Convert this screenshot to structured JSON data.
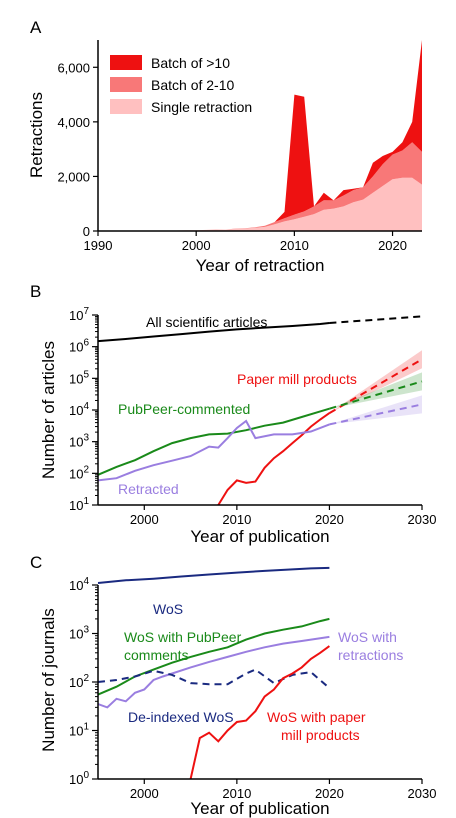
{
  "chart_data": [
    {
      "panel_label": "A",
      "type": "area",
      "stacked": true,
      "xlabel": "Year of retraction",
      "ylabel": "Retractions",
      "xlim": [
        1990,
        2023
      ],
      "ylim": [
        0,
        7000
      ],
      "xticks": [
        1990,
        2000,
        2010,
        2020
      ],
      "yticks": [
        0,
        2000,
        4000,
        6000
      ],
      "ytick_labels": [
        "0",
        "2,000",
        "4,000",
        "6,000"
      ],
      "legend_position": "top-left",
      "x": [
        1990,
        1991,
        1992,
        1993,
        1994,
        1995,
        1996,
        1997,
        1998,
        1999,
        2000,
        2001,
        2002,
        2003,
        2004,
        2005,
        2006,
        2007,
        2008,
        2009,
        2010,
        2011,
        2012,
        2013,
        2014,
        2015,
        2016,
        2017,
        2018,
        2019,
        2020,
        2021,
        2022,
        2023
      ],
      "series": [
        {
          "name": "Single retraction",
          "color": "#ffc0c0",
          "values": [
            10,
            10,
            10,
            10,
            10,
            10,
            15,
            20,
            20,
            25,
            30,
            40,
            60,
            50,
            80,
            90,
            120,
            150,
            250,
            350,
            430,
            520,
            620,
            780,
            820,
            900,
            1050,
            1150,
            1400,
            1650,
            1900,
            1950,
            1950,
            1700
          ]
        },
        {
          "name": "Batch of 2-10",
          "color": "#f87878",
          "values": [
            0,
            0,
            0,
            0,
            0,
            0,
            0,
            0,
            0,
            0,
            0,
            0,
            0,
            0,
            10,
            10,
            20,
            40,
            80,
            120,
            170,
            200,
            280,
            350,
            300,
            400,
            450,
            450,
            600,
            800,
            900,
            1000,
            1300,
            1200
          ]
        },
        {
          "name": "Batch of >10",
          "color": "#ee1111",
          "values": [
            0,
            0,
            0,
            0,
            0,
            0,
            0,
            0,
            0,
            0,
            0,
            0,
            0,
            0,
            0,
            0,
            0,
            0,
            0,
            230,
            4400,
            4200,
            0,
            270,
            0,
            200,
            50,
            0,
            500,
            300,
            100,
            300,
            750,
            4100
          ]
        }
      ]
    },
    {
      "panel_label": "B",
      "type": "line",
      "yscale": "log",
      "xlabel": "Year of publication",
      "ylabel": "Number of articles",
      "xlim": [
        1995,
        2030
      ],
      "ylim_exponent": [
        1,
        7
      ],
      "xticks": [
        2000,
        2010,
        2020,
        2030
      ],
      "series": [
        {
          "name": "All scientific articles",
          "color": "#000000",
          "x": [
            1995,
            1998,
            2001,
            2004,
            2007,
            2010,
            2013,
            2016,
            2019,
            2020
          ],
          "values": [
            1500000,
            1750000,
            2100000,
            2500000,
            3000000,
            3500000,
            4000000,
            4500000,
            5200000,
            5600000
          ],
          "projection": {
            "x": [
              2020,
              2030
            ],
            "values": [
              5600000,
              9000000
            ]
          }
        },
        {
          "name": "Paper mill products",
          "color": "#ee1111",
          "x": [
            2008,
            2009,
            2010,
            2011,
            2012,
            2013,
            2014,
            2015,
            2016,
            2017,
            2018,
            2019,
            2020
          ],
          "values": [
            10,
            30,
            60,
            50,
            55,
            150,
            300,
            500,
            900,
            1600,
            3000,
            5000,
            8000
          ],
          "projection": {
            "x": [
              2020,
              2030
            ],
            "values": [
              8000,
              400000
            ]
          }
        },
        {
          "name": "PubPeer-commented",
          "color": "#1a8a1a",
          "x": [
            1995,
            1997,
            1999,
            2001,
            2003,
            2005,
            2007,
            2009,
            2011,
            2013,
            2015,
            2017,
            2019,
            2020
          ],
          "values": [
            90,
            160,
            260,
            500,
            900,
            1300,
            1700,
            1800,
            2300,
            3200,
            4000,
            6000,
            9000,
            11000
          ],
          "projection": {
            "x": [
              2020,
              2030
            ],
            "values": [
              11000,
              80000
            ]
          }
        },
        {
          "name": "Retracted",
          "color": "#9a7ee0",
          "x": [
            1995,
            1997,
            1999,
            2001,
            2003,
            2005,
            2007,
            2008,
            2009,
            2010,
            2011,
            2012,
            2014,
            2016,
            2018,
            2020
          ],
          "values": [
            60,
            70,
            120,
            180,
            250,
            350,
            700,
            650,
            1300,
            2700,
            4500,
            1300,
            1700,
            1700,
            2100,
            3500
          ],
          "projection": {
            "x": [
              2020,
              2030
            ],
            "values": [
              3500,
              15000
            ]
          }
        }
      ]
    },
    {
      "panel_label": "C",
      "type": "line",
      "yscale": "log",
      "xlabel": "Year of publication",
      "ylabel": "Number of journals",
      "xlim": [
        1995,
        2030
      ],
      "ylim_exponent": [
        0,
        4
      ],
      "xticks": [
        2000,
        2010,
        2020,
        2030
      ],
      "series": [
        {
          "name": "WoS",
          "color": "#1a2a80",
          "dashed": false,
          "x": [
            1995,
            1998,
            2001,
            2004,
            2007,
            2010,
            2013,
            2016,
            2018,
            2020
          ],
          "values": [
            11000,
            12500,
            13500,
            15000,
            16500,
            18000,
            19500,
            21000,
            22000,
            22500
          ]
        },
        {
          "name": "WoS with PubPeer comments",
          "color": "#1a8a1a",
          "dashed": false,
          "x": [
            1995,
            1997,
            1999,
            2001,
            2003,
            2005,
            2007,
            2009,
            2011,
            2013,
            2015,
            2017,
            2019,
            2020
          ],
          "values": [
            55,
            80,
            130,
            180,
            250,
            330,
            420,
            520,
            750,
            1000,
            1200,
            1400,
            1800,
            2000
          ]
        },
        {
          "name": "WoS with retractions",
          "color": "#9a7ee0",
          "dashed": false,
          "x": [
            1995,
            1996,
            1997,
            1998,
            1999,
            2000,
            2001,
            2002,
            2003,
            2005,
            2007,
            2009,
            2011,
            2013,
            2015,
            2017,
            2019,
            2020
          ],
          "values": [
            35,
            30,
            45,
            40,
            60,
            70,
            110,
            130,
            150,
            200,
            260,
            330,
            420,
            520,
            620,
            700,
            800,
            850
          ]
        },
        {
          "name": "De-indexed WoS",
          "color": "#1a2a80",
          "dashed": true,
          "x": [
            1995,
            1997,
            1999,
            2001,
            2003,
            2005,
            2007,
            2009,
            2011,
            2012,
            2014,
            2016,
            2018,
            2020
          ],
          "values": [
            100,
            110,
            130,
            170,
            140,
            95,
            90,
            90,
            150,
            180,
            95,
            140,
            160,
            75
          ]
        },
        {
          "name": "WoS with paper mill products",
          "color": "#ee1111",
          "dashed": false,
          "x": [
            2005,
            2006,
            2007,
            2008,
            2009,
            2010,
            2011,
            2012,
            2013,
            2014,
            2015,
            2016,
            2017,
            2018,
            2019,
            2020
          ],
          "values": [
            1,
            7,
            9,
            6,
            10,
            15,
            16,
            25,
            50,
            70,
            120,
            150,
            200,
            300,
            400,
            550
          ]
        }
      ]
    }
  ]
}
